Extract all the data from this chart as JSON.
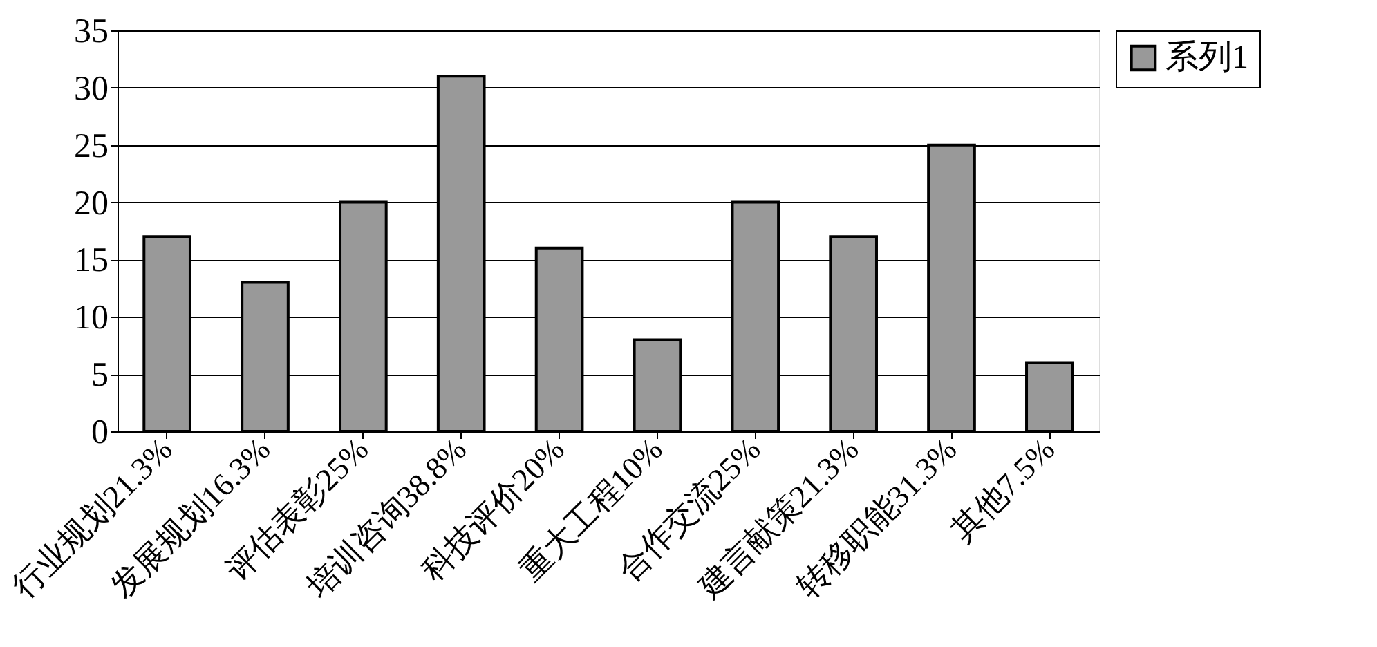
{
  "chart_data": {
    "type": "bar",
    "categories": [
      "行业规划21.3%",
      "发展规划16.3%",
      "评估表彰25%",
      "培训咨询38.8%",
      "科技评价20%",
      "重大工程10%",
      "合作交流25%",
      "建言献策21.3%",
      "转移职能31.3%",
      "其他7.5%"
    ],
    "series": [
      {
        "name": "系列1",
        "color": "#999999",
        "values": [
          17,
          13,
          20,
          31,
          16,
          8,
          20,
          17,
          25,
          6
        ]
      }
    ],
    "ylim": [
      0,
      35
    ],
    "yticks": [
      0,
      5,
      10,
      15,
      20,
      25,
      30,
      35
    ],
    "grid": "y",
    "legend": "right"
  }
}
